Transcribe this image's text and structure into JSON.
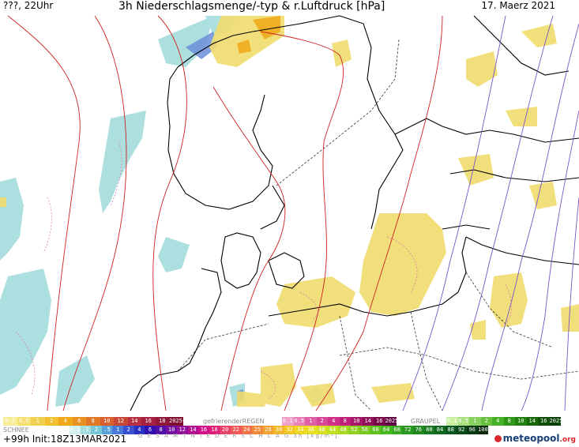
{
  "header": {
    "left": "???, 22Uhr",
    "title": "3h Niederschlagsmenge/-typ & r.Luftdruck [hPa]",
    "date": "17. Maerz 2021"
  },
  "legend": {
    "rain_values": [
      "0.1",
      "0.5",
      "1",
      "2",
      "4",
      "6",
      "8",
      "10",
      "12",
      "14",
      "16",
      "18",
      "2025+"
    ],
    "freezing_rain_label": "gefrierenderREGEN",
    "freezing_rain_values": [
      "0.1",
      "0.5",
      "1",
      "2",
      "4",
      "8",
      "10",
      "14",
      "16",
      "2025+"
    ],
    "graupel_label": "GRAUPEL",
    "graupel_values": [
      "0.1",
      "0.5",
      "1",
      "2",
      "4",
      "8",
      "10",
      "14",
      "16",
      "2025+"
    ],
    "snow_label": "SCHNEE",
    "snow_values": [
      "0.1",
      ".1",
      "2",
      ".5",
      "1",
      "2",
      "4",
      "6",
      "8",
      "10",
      "12",
      "14",
      "16",
      "18",
      "20",
      "22",
      "24",
      "25",
      "28",
      "30",
      "32",
      "34",
      "36",
      "40",
      "44",
      "48",
      "52",
      "56",
      "60",
      "64",
      "68",
      "72",
      "76",
      "80",
      "84",
      "88",
      "92",
      "96",
      "100"
    ],
    "total_label": "G E S A M T N I E D E R S C H L A G   3h  [kg/m²]"
  },
  "footer": {
    "init": "+99h Init:18Z13MAR2021",
    "logo_main": "meteopool",
    "logo_suffix": ".org"
  },
  "colors": {
    "rain_yellow": "#f0dc6e",
    "rain_orange": "#f0a818",
    "snow_cyan": "#a4dcdc",
    "snow_blue": "#6a8ed8",
    "isobar_red": "#cc2222",
    "isobar_purple": "#7a55c8",
    "pink_contour": "#e070b0"
  }
}
